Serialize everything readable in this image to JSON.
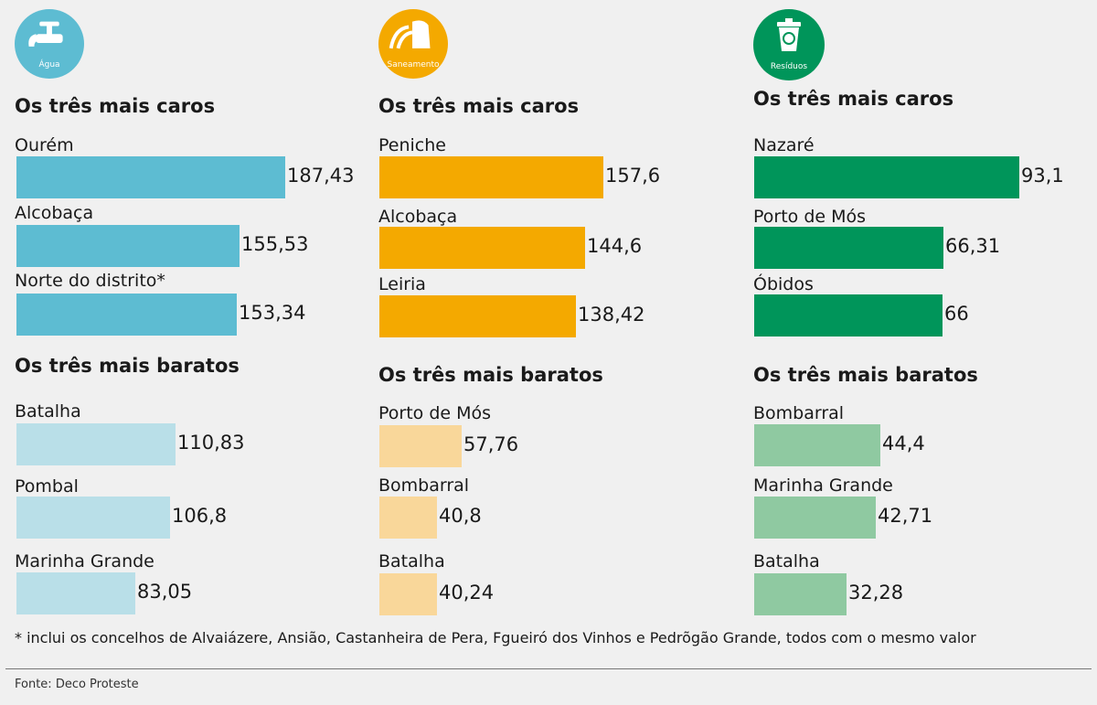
{
  "footnote": "* inclui os concelhos de Alvaiázere, Ansião, Castanheira de Pera, Fgueiró dos Vinhos e Pedrõgão Grande, todos com o mesmo valor",
  "source": "Fonte: Deco Proteste",
  "chart_data": [
    {
      "type": "bar",
      "orientation": "horizontal",
      "icon": {
        "name": "faucet-icon",
        "label": "Água"
      },
      "colors": {
        "expensive": "#5dbcd2",
        "cheap": "#b9dfe8",
        "icon": "#5dbcd2"
      },
      "groups": [
        {
          "title": "Os três mais caros",
          "categories": [
            "Ourém",
            "Alcobaça",
            "Norte do distrito*"
          ],
          "values": [
            187.43
          ],
          "labels": [
            "187,43"
          ]
        },
        {
          "title": "Os três mais baratos",
          "categories": [
            "Batalha",
            "Pombal",
            "Marinha Grande"
          ],
          "values": [
            110.83,
            106.8,
            83.05
          ],
          "labels": [
            "110,83",
            "106,8",
            "83,05"
          ]
        }
      ]
    },
    {
      "type": "bar",
      "orientation": "horizontal",
      "icon": {
        "name": "sewer-icon",
        "label": "Saneamento"
      },
      "colors": {
        "expensive": "#f4a900",
        "cheap": "#f9d79a",
        "icon": "#f4a900"
      },
      "groups": [
        {
          "title": "Os três mais caros",
          "categories": [
            "Peniche",
            "Alcobaça",
            "Leiria"
          ],
          "values": [
            157.6,
            144.6,
            138.42
          ],
          "labels": [
            "157,6",
            "144,6",
            "138,42"
          ]
        },
        {
          "title": "Os três mais baratos",
          "categories": [
            "Porto de Mós",
            "Bombarral",
            "Batalha"
          ],
          "values": [
            57.76,
            40.8,
            40.24
          ],
          "labels": [
            "57,76",
            "40,8",
            "40,24"
          ]
        }
      ]
    },
    {
      "type": "bar",
      "orientation": "horizontal",
      "icon": {
        "name": "recycle-bin-icon",
        "label": "Resíduos"
      },
      "colors": {
        "expensive": "#00955a",
        "cheap": "#8fc9a1",
        "icon": "#00955a"
      },
      "groups": [
        {
          "title": "Os três mais caros",
          "categories": [
            "Nazaré",
            "Porto de Mós",
            "Óbidos"
          ],
          "values": [
            93.1,
            66.31,
            66
          ],
          "labels": [
            "93,1",
            "66,31",
            "66"
          ]
        },
        {
          "title": "Os três mais baratos",
          "categories": [
            "Bombarral",
            "Marinha Grande",
            "Batalha"
          ],
          "values": [
            44.4,
            42.71,
            32.28
          ],
          "labels": [
            "44,4",
            "42,71",
            "32,28"
          ]
        }
      ]
    }
  ]
}
